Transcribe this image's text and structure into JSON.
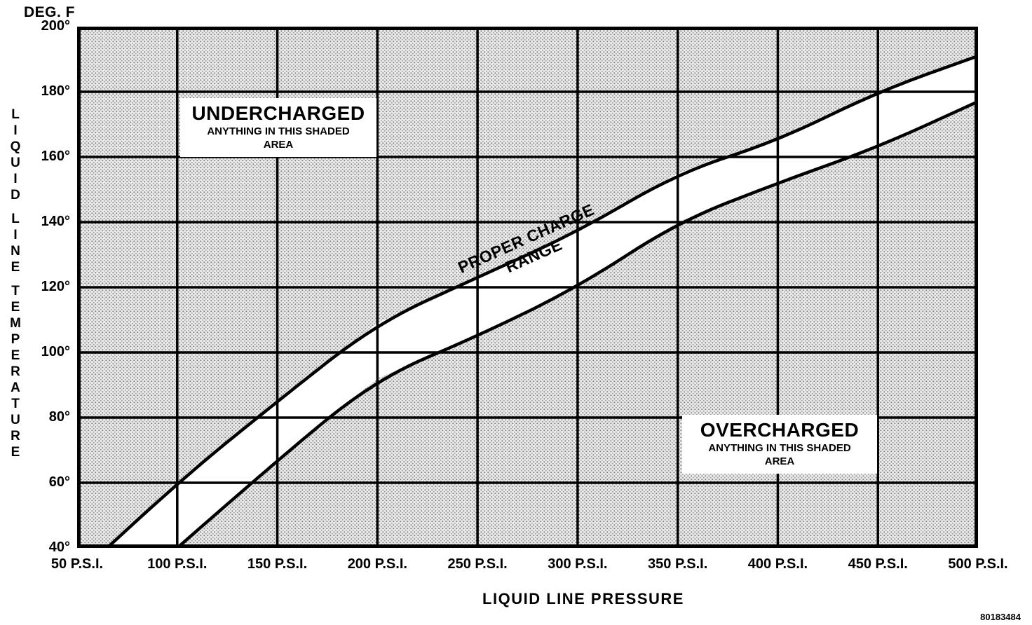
{
  "doc_number": "80183484",
  "chart_data": {
    "type": "area",
    "title": "",
    "x_axis_title": "LIQUID LINE PRESSURE",
    "y_axis_title": "LIQUID LINE TEMPERATURE",
    "y_unit_label": "DEG. F",
    "xlim": [
      50,
      500
    ],
    "ylim": [
      40,
      200
    ],
    "grid": true,
    "x_ticks": [
      50,
      100,
      150,
      200,
      250,
      300,
      350,
      400,
      450,
      500
    ],
    "x_tick_labels": [
      "50 P.S.I.",
      "100 P.S.I.",
      "150 P.S.I.",
      "200 P.S.I.",
      "250 P.S.I.",
      "300 P.S.I.",
      "350 P.S.I.",
      "400 P.S.I.",
      "450 P.S.I.",
      "500 P.S.I."
    ],
    "y_ticks": [
      200,
      180,
      160,
      140,
      120,
      100,
      80,
      60,
      40
    ],
    "y_tick_labels": [
      "200°",
      "180°",
      "160°",
      "140°",
      "120°",
      "100°",
      "80°",
      "60°",
      "40°"
    ],
    "series": [
      {
        "name": "proper_charge_upper_boundary",
        "points": [
          [
            65,
            40
          ],
          [
            100,
            60
          ],
          [
            150,
            85
          ],
          [
            200,
            109
          ],
          [
            250,
            123
          ],
          [
            300,
            137
          ],
          [
            350,
            155
          ],
          [
            400,
            165
          ],
          [
            450,
            180
          ],
          [
            500,
            191
          ]
        ]
      },
      {
        "name": "proper_charge_lower_boundary",
        "points": [
          [
            100,
            40
          ],
          [
            150,
            67
          ],
          [
            200,
            92
          ],
          [
            250,
            105
          ],
          [
            300,
            120
          ],
          [
            350,
            140
          ],
          [
            400,
            152
          ],
          [
            450,
            163
          ],
          [
            500,
            177
          ]
        ]
      }
    ],
    "annotations": {
      "undercharged": {
        "title": "UNDERCHARGED",
        "line1": "ANYTHING IN THIS SHADED",
        "line2": "AREA"
      },
      "overcharged": {
        "title": "OVERCHARGED",
        "line1": "ANYTHING IN THIS SHADED",
        "line2": "AREA"
      },
      "band_label_line1": "PROPER CHARGE",
      "band_label_line2": "RANGE"
    },
    "colors": {
      "grid": "#000000",
      "curve": "#000000",
      "band_fill": "#ffffff",
      "shade_bg": "#ebebeb",
      "shade_dot": "#7d7d7d",
      "text": "#000000"
    }
  }
}
